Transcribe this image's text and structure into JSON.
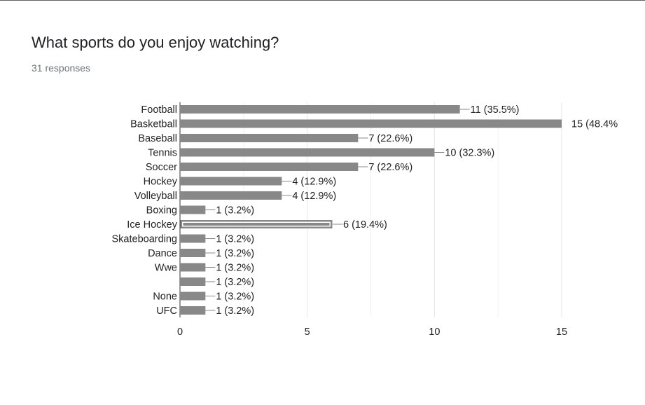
{
  "question": {
    "title": "What sports do you enjoy watching?",
    "responses": "31 responses"
  },
  "colors": {
    "bar": "#888888",
    "bar_highlight_border": "#888888",
    "axis": "#333333",
    "grid": "#e6e6e6",
    "text": "#222222",
    "leader": "#888888"
  },
  "chart_data": {
    "type": "bar",
    "orientation": "horizontal",
    "categories": [
      "Football",
      "Basketball",
      "Baseball",
      "Tennis",
      "Soccer",
      "Hockey",
      "Volleyball",
      "Boxing",
      "Ice Hockey",
      "Skateboarding",
      "Dance",
      "Wwe",
      "",
      "None",
      "UFC"
    ],
    "values": [
      11,
      15,
      7,
      10,
      7,
      4,
      4,
      1,
      6,
      1,
      1,
      1,
      1,
      1,
      1
    ],
    "labels": [
      "11 (35.5%)",
      "15 (48.4%",
      "7 (22.6%)",
      "10 (32.3%)",
      "7 (22.6%)",
      "4 (12.9%)",
      "4 (12.9%)",
      "1 (3.2%)",
      "6 (19.4%)",
      "1 (3.2%)",
      "1 (3.2%)",
      "1 (3.2%)",
      "1 (3.2%)",
      "1 (3.2%)",
      "1 (3.2%)"
    ],
    "highlighted_index": 8,
    "xlim": [
      0,
      15
    ],
    "xticks": [
      "0",
      "5",
      "10",
      "15"
    ],
    "grid": true,
    "legend": "none"
  }
}
